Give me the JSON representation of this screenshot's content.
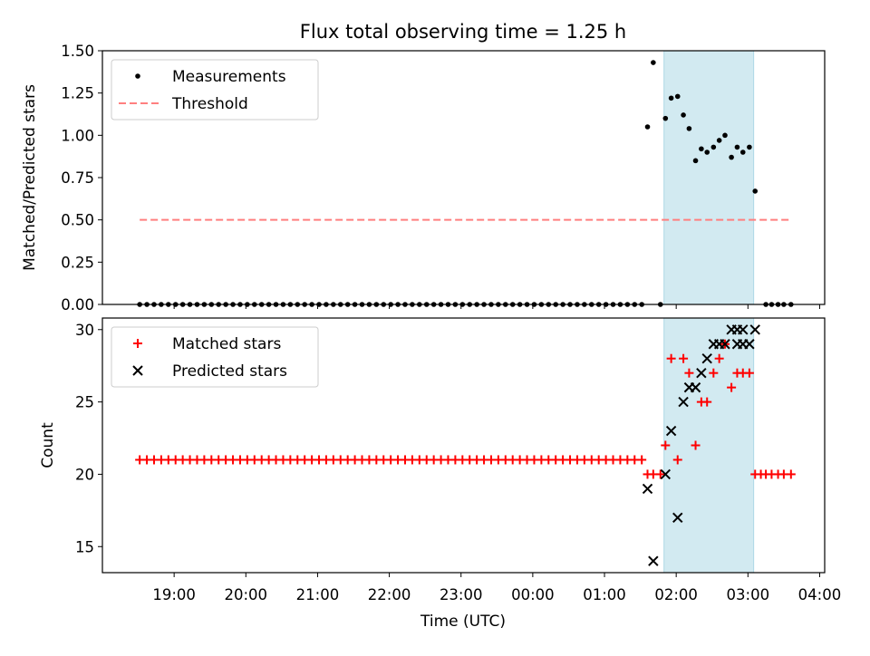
{
  "title": "Flux total observing time = 1.25 h",
  "xlabel": "Time (UTC)",
  "x_ticks": [
    "19:00",
    "20:00",
    "21:00",
    "22:00",
    "23:00",
    "00:00",
    "01:00",
    "02:00",
    "03:00",
    "04:00"
  ],
  "colors": {
    "measurement": "#000000",
    "threshold": "#ff7f7f",
    "matched": "#ff0000",
    "predicted": "#000000",
    "observing_span": "#add8e6"
  },
  "chart_data": [
    {
      "type": "scatter",
      "ylabel": "Matched/Predicted stars",
      "ylim": [
        0,
        1.5
      ],
      "y_ticks": [
        "0.00",
        "0.25",
        "0.50",
        "0.75",
        "1.00",
        "1.25",
        "1.50"
      ],
      "x_unit": "hours after 18:00 UTC",
      "xlim": [
        0.0,
        10.07
      ],
      "legend": {
        "position": "top-left",
        "entries": [
          "Measurements",
          "Threshold"
        ]
      },
      "observing_span": [
        7.83,
        9.08
      ],
      "threshold": {
        "name": "Threshold",
        "value": 0.5,
        "x": [
          0.52,
          9.6
        ]
      },
      "series": [
        {
          "name": "Measurements",
          "x_start": 0.52,
          "x_step": 0.1,
          "x_end": 7.52,
          "y": 0,
          "points": [
            [
              7.6,
              1.05
            ],
            [
              7.68,
              1.43
            ],
            [
              7.78,
              0.0
            ],
            [
              7.85,
              1.1
            ],
            [
              7.93,
              1.22
            ],
            [
              8.02,
              1.23
            ],
            [
              8.1,
              1.12
            ],
            [
              8.18,
              1.04
            ],
            [
              8.27,
              0.85
            ],
            [
              8.35,
              0.92
            ],
            [
              8.43,
              0.9
            ],
            [
              8.52,
              0.93
            ],
            [
              8.6,
              0.97
            ],
            [
              8.68,
              1.0
            ],
            [
              8.77,
              0.87
            ],
            [
              8.85,
              0.93
            ],
            [
              8.93,
              0.9
            ],
            [
              9.02,
              0.93
            ],
            [
              9.1,
              0.67
            ],
            [
              9.25,
              0.0
            ],
            [
              9.33,
              0.0
            ],
            [
              9.42,
              0.0
            ],
            [
              9.5,
              0.0
            ],
            [
              9.6,
              0.0
            ]
          ]
        }
      ]
    },
    {
      "type": "scatter",
      "ylabel": "Count",
      "ylim": [
        13.2,
        30.8
      ],
      "y_ticks": [
        "15",
        "20",
        "25",
        "30"
      ],
      "x_unit": "hours after 18:00 UTC",
      "xlim": [
        0.0,
        10.07
      ],
      "legend": {
        "position": "top-left",
        "entries": [
          "Matched stars",
          "Predicted stars"
        ]
      },
      "observing_span": [
        7.83,
        9.08
      ],
      "series": [
        {
          "name": "Matched stars",
          "x_start": 0.52,
          "x_step": 0.1,
          "x_end": 7.52,
          "y": 21,
          "points": [
            [
              7.6,
              20
            ],
            [
              7.68,
              20
            ],
            [
              7.78,
              20
            ],
            [
              7.85,
              22
            ],
            [
              7.93,
              28
            ],
            [
              8.02,
              21
            ],
            [
              8.1,
              28
            ],
            [
              8.18,
              27
            ],
            [
              8.27,
              22
            ],
            [
              8.35,
              25
            ],
            [
              8.43,
              25
            ],
            [
              8.52,
              27
            ],
            [
              8.6,
              28
            ],
            [
              8.68,
              29
            ],
            [
              8.77,
              26
            ],
            [
              8.85,
              27
            ],
            [
              8.93,
              27
            ],
            [
              9.02,
              27
            ],
            [
              9.1,
              20
            ],
            [
              9.18,
              20
            ],
            [
              9.25,
              20
            ],
            [
              9.33,
              20
            ],
            [
              9.42,
              20
            ],
            [
              9.5,
              20
            ],
            [
              9.6,
              20
            ]
          ]
        },
        {
          "name": "Predicted stars",
          "points": [
            [
              7.6,
              19
            ],
            [
              7.68,
              14
            ],
            [
              7.85,
              20
            ],
            [
              7.93,
              23
            ],
            [
              8.02,
              17
            ],
            [
              8.1,
              25
            ],
            [
              8.18,
              26
            ],
            [
              8.27,
              26
            ],
            [
              8.35,
              27
            ],
            [
              8.43,
              28
            ],
            [
              8.52,
              29
            ],
            [
              8.6,
              29
            ],
            [
              8.68,
              29
            ],
            [
              8.77,
              30
            ],
            [
              8.85,
              30
            ],
            [
              8.85,
              29
            ],
            [
              8.93,
              30
            ],
            [
              9.02,
              29
            ],
            [
              9.1,
              30
            ],
            [
              8.93,
              29
            ]
          ]
        }
      ]
    }
  ]
}
